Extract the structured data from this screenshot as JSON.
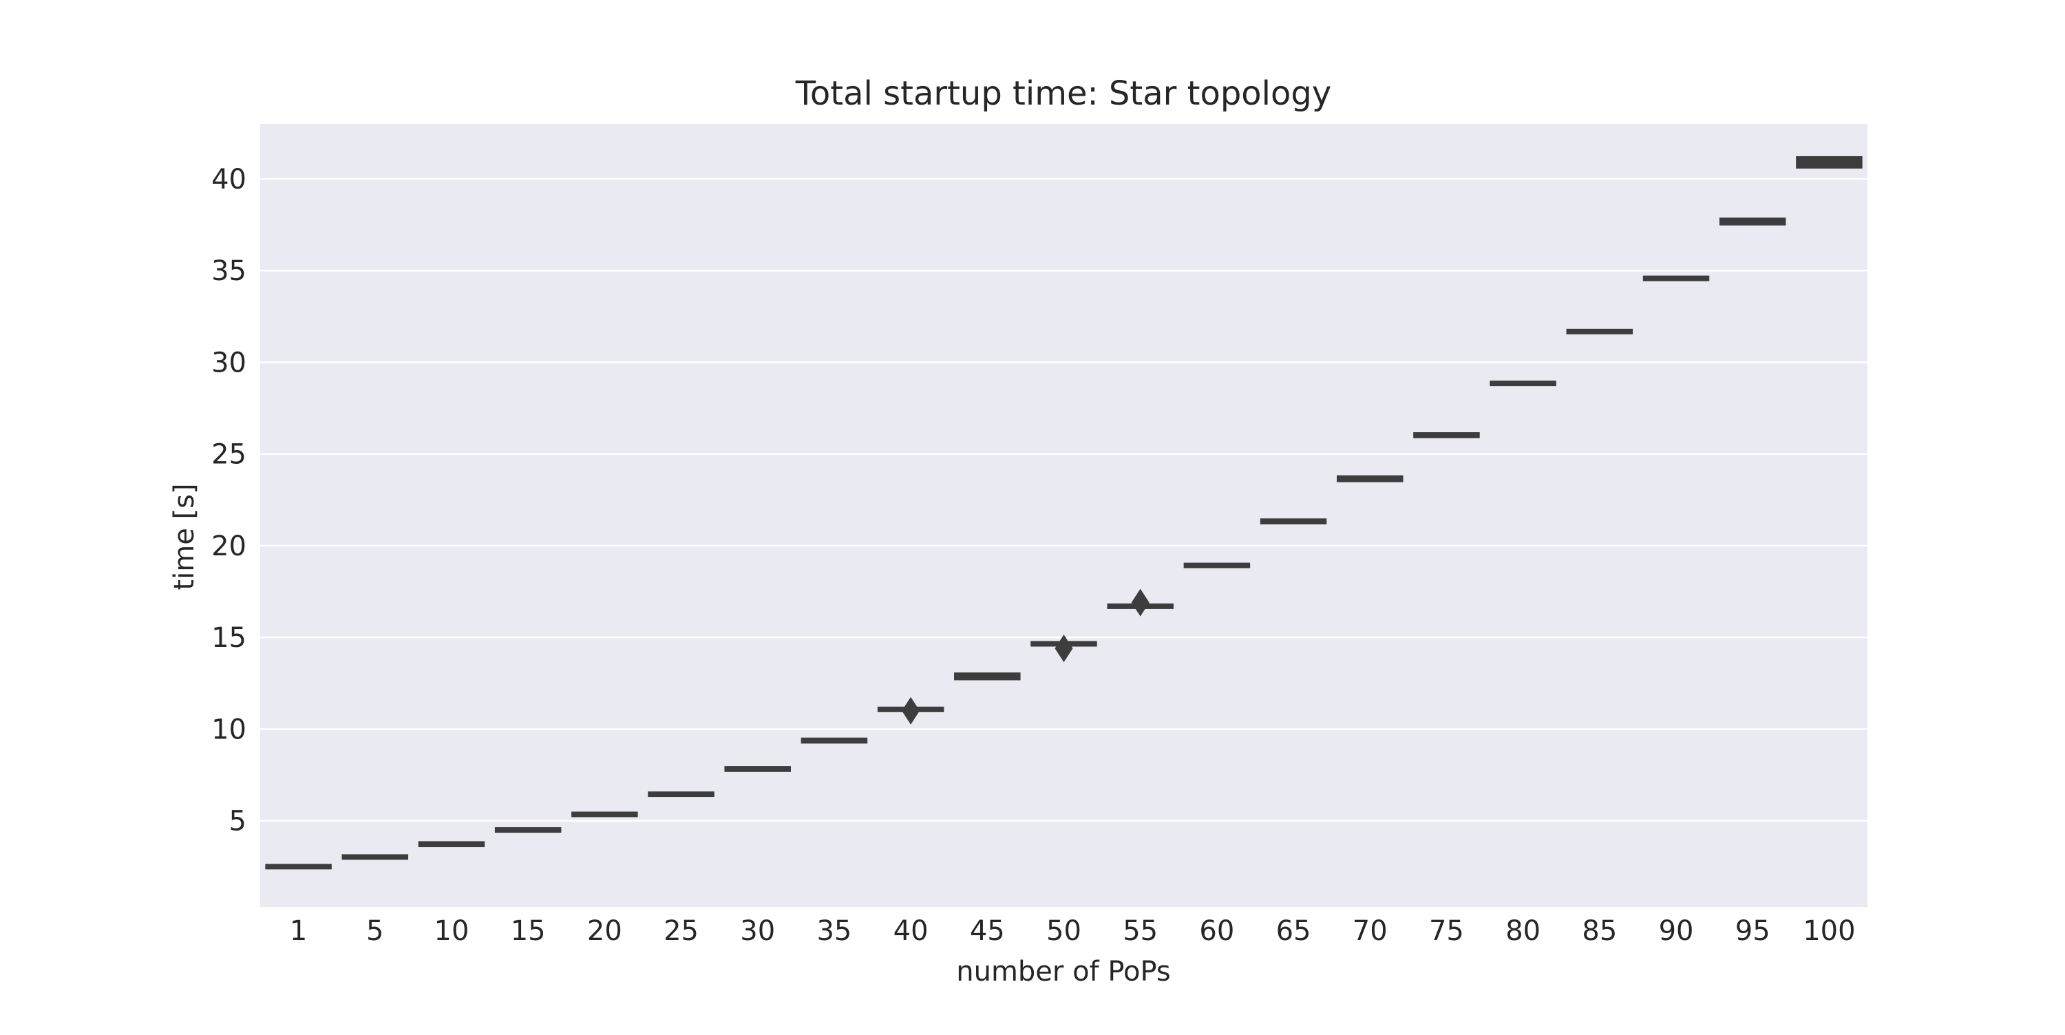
{
  "chart_data": {
    "type": "boxplot",
    "title": "Total startup time: Star topology",
    "xlabel": "number of PoPs",
    "ylabel": "time [s]",
    "categories": [
      "1",
      "5",
      "10",
      "15",
      "20",
      "25",
      "30",
      "35",
      "40",
      "45",
      "50",
      "55",
      "60",
      "65",
      "70",
      "75",
      "80",
      "85",
      "90",
      "95",
      "100"
    ],
    "boxes": [
      {
        "q1": 2.4,
        "median": 2.5,
        "q3": 2.6
      },
      {
        "q1": 2.95,
        "median": 3.0,
        "q3": 3.1
      },
      {
        "q1": 3.6,
        "median": 3.7,
        "q3": 3.85
      },
      {
        "q1": 4.4,
        "median": 4.5,
        "q3": 4.6
      },
      {
        "q1": 5.25,
        "median": 5.35,
        "q3": 5.45
      },
      {
        "q1": 6.35,
        "median": 6.45,
        "q3": 6.55
      },
      {
        "q1": 7.7,
        "median": 7.85,
        "q3": 7.95
      },
      {
        "q1": 9.25,
        "median": 9.35,
        "q3": 9.5
      },
      {
        "q1": 11.0,
        "median": 11.1,
        "q3": 11.15
      },
      {
        "q1": 12.7,
        "median": 12.9,
        "q3": 13.05
      },
      {
        "q1": 14.55,
        "median": 14.65,
        "q3": 14.75
      },
      {
        "q1": 16.6,
        "median": 16.7,
        "q3": 16.8
      },
      {
        "q1": 18.85,
        "median": 18.95,
        "q3": 19.0
      },
      {
        "q1": 21.2,
        "median": 21.35,
        "q3": 21.45
      },
      {
        "q1": 23.5,
        "median": 23.65,
        "q3": 23.8
      },
      {
        "q1": 25.9,
        "median": 26.0,
        "q3": 26.15
      },
      {
        "q1": 28.75,
        "median": 28.85,
        "q3": 28.95
      },
      {
        "q1": 31.6,
        "median": 31.7,
        "q3": 31.75
      },
      {
        "q1": 34.5,
        "median": 34.55,
        "q3": 34.65
      },
      {
        "q1": 37.5,
        "median": 37.7,
        "q3": 37.85
      },
      {
        "q1": 40.6,
        "median": 40.95,
        "q3": 41.2
      }
    ],
    "outliers": [
      {
        "category": "40",
        "value": 11.0
      },
      {
        "category": "50",
        "value": 14.4
      },
      {
        "category": "55",
        "value": 16.9
      }
    ],
    "yticks": [
      5,
      10,
      15,
      20,
      25,
      30,
      35,
      40
    ],
    "ylim": [
      0.3,
      43
    ],
    "grid": true,
    "colors": {
      "plot_background": "#EAEAF2",
      "grid": "#FFFFFF",
      "box": "#3D3D3D",
      "text": "#262626"
    }
  }
}
